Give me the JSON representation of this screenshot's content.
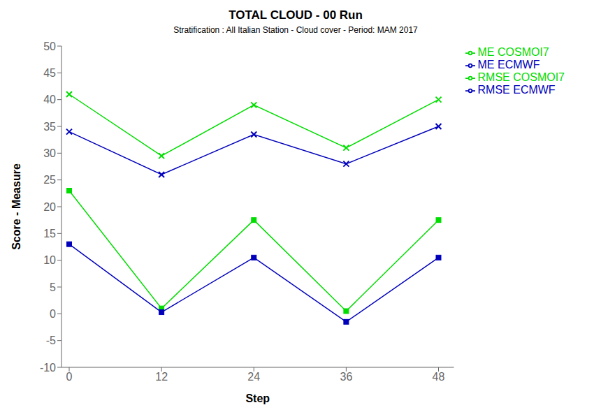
{
  "chart_data": {
    "type": "line",
    "title": "TOTAL CLOUD - 00 Run",
    "subtitle": "Stratification : All Italian Station - Cloud cover - Period: MAM 2017",
    "x_label": "Step",
    "y_label": "Score - Measure",
    "x": [
      0,
      12,
      24,
      36,
      48
    ],
    "series": [
      {
        "name": "ME COSMOI7",
        "color": "#00DD00",
        "values": [
          23,
          1,
          17.5,
          0.5,
          17.5
        ],
        "marker": "square",
        "line_style": "solid"
      },
      {
        "name": "ME ECMWF",
        "color": "#0000BB",
        "values": [
          13,
          0.3,
          10.5,
          -1.5,
          10.5
        ],
        "marker": "square",
        "line_style": "solid"
      },
      {
        "name": "RMSE COSMOI7",
        "color": "#00DD00",
        "values": [
          41,
          29.5,
          39,
          31,
          40
        ],
        "marker": "x",
        "line_style": "solid"
      },
      {
        "name": "RMSE ECMWF",
        "color": "#0000BB",
        "values": [
          34,
          26,
          33.5,
          28,
          35
        ],
        "marker": "x",
        "line_style": "solid"
      }
    ],
    "xlim": [
      -1,
      50
    ],
    "xticks": [
      0,
      12,
      24,
      36,
      48
    ],
    "ylim": [
      -10,
      50
    ],
    "yticks": [
      -10,
      -5,
      0,
      5,
      10,
      15,
      20,
      25,
      30,
      35,
      40,
      45,
      50
    ],
    "grid": false,
    "legend": "upper right"
  }
}
